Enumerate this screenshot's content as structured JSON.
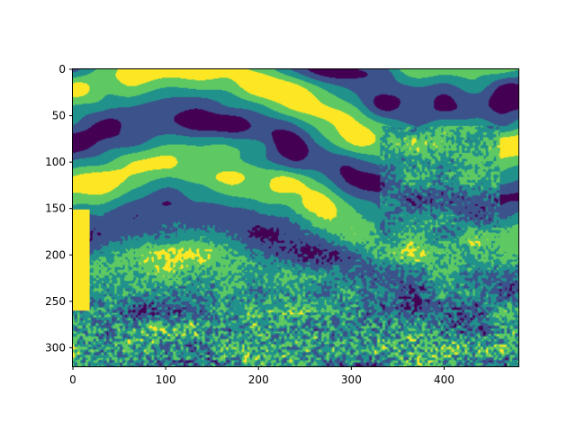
{
  "chart_data": {
    "type": "heatmap",
    "title": "",
    "xlabel": "",
    "ylabel": "",
    "xlim": [
      0,
      480
    ],
    "ylim": [
      320,
      0
    ],
    "y_inverted": true,
    "image_shape": [
      320,
      480
    ],
    "colormap": "viridis",
    "num_levels": 5,
    "level_colors": [
      "#440154",
      "#3b528b",
      "#21918c",
      "#5ec962",
      "#fde725"
    ],
    "xticks": [
      0,
      100,
      200,
      300,
      400
    ],
    "xtick_labels": [
      "0",
      "100",
      "200",
      "300",
      "400"
    ],
    "yticks": [
      0,
      50,
      100,
      150,
      200,
      250,
      300
    ],
    "ytick_labels": [
      "0",
      "50",
      "100",
      "150",
      "200",
      "250",
      "300"
    ],
    "grid": false,
    "legend": "none",
    "colorbar": false
  }
}
